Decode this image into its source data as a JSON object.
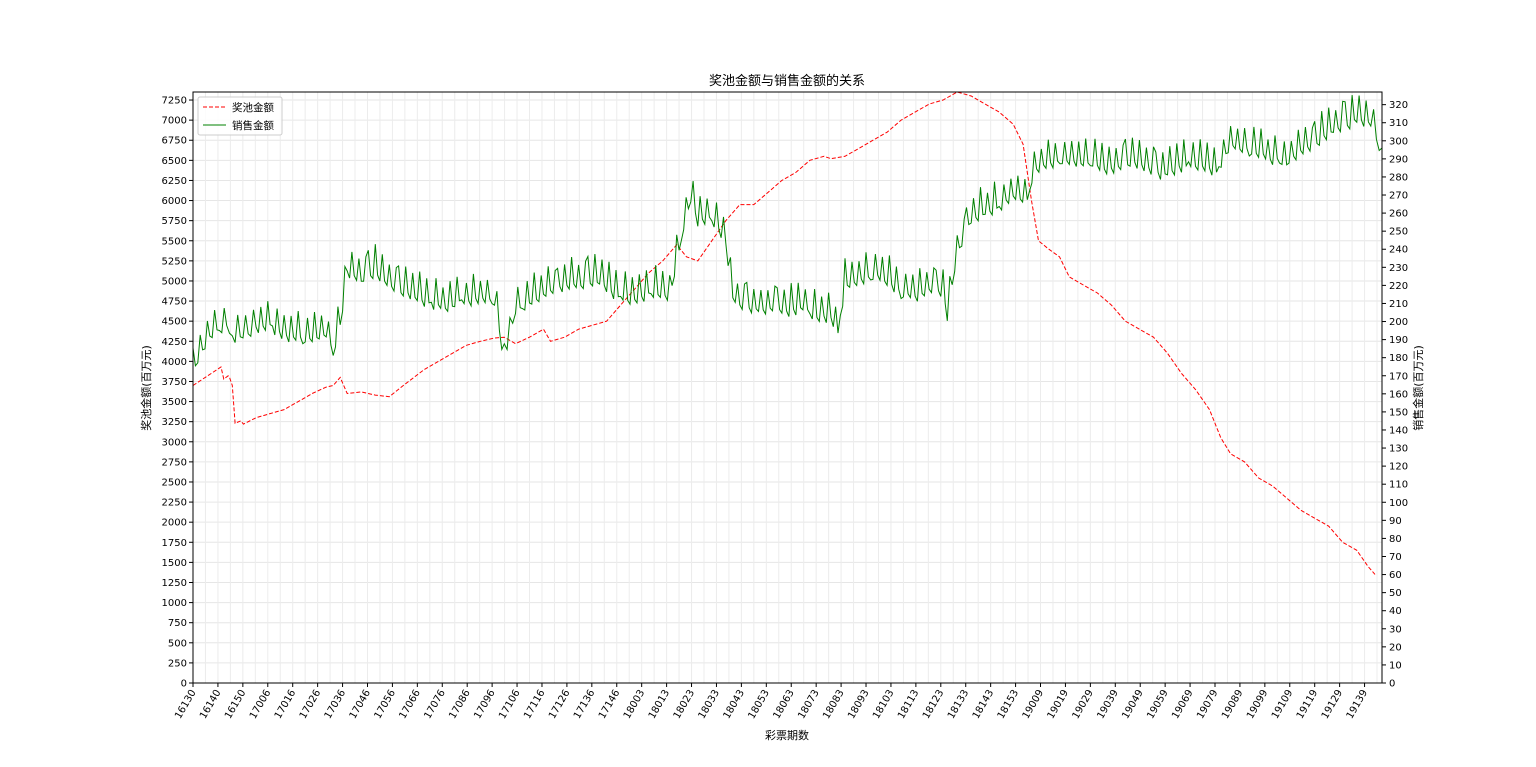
{
  "chart_data": {
    "type": "line",
    "title": "奖池金额与销售金额的关系",
    "xlabel": "彩票期数",
    "ylabel_left": "奖池金额(百万元)",
    "ylabel_right": "销售金额(百万元)",
    "grid": true,
    "legend_position": "upper-left",
    "x_ticks": [
      "16130",
      "16140",
      "16150",
      "17006",
      "17016",
      "17026",
      "17036",
      "17046",
      "17056",
      "17066",
      "17076",
      "17086",
      "17096",
      "17106",
      "17116",
      "17126",
      "17136",
      "17146",
      "18003",
      "18013",
      "18023",
      "18033",
      "18043",
      "18053",
      "18063",
      "18073",
      "18083",
      "18093",
      "18103",
      "18113",
      "18123",
      "18133",
      "18143",
      "18153",
      "19009",
      "19019",
      "19029",
      "19039",
      "19049",
      "19059",
      "19069",
      "19079",
      "19089",
      "19099",
      "19109",
      "19119",
      "19129",
      "19139"
    ],
    "x_count": 478,
    "y_left": {
      "lim": [
        0,
        7350
      ],
      "ticks": [
        0,
        250,
        500,
        750,
        1000,
        1250,
        1500,
        1750,
        2000,
        2250,
        2500,
        2750,
        3000,
        3250,
        3500,
        3750,
        4000,
        4250,
        4500,
        4750,
        5000,
        5250,
        5500,
        5750,
        6000,
        6250,
        6500,
        6750,
        7000,
        7250
      ]
    },
    "y_right": {
      "lim": [
        0,
        327
      ],
      "ticks": [
        0,
        10,
        20,
        30,
        40,
        50,
        60,
        70,
        80,
        90,
        100,
        110,
        120,
        130,
        140,
        150,
        160,
        170,
        180,
        190,
        200,
        210,
        220,
        230,
        240,
        250,
        260,
        270,
        280,
        290,
        300,
        310,
        320
      ]
    },
    "series": [
      {
        "name": "奖池金额",
        "color": "#ff0000",
        "style": "dashed",
        "axis": "left",
        "points": [
          [
            0,
            3700
          ],
          [
            20,
            3930
          ],
          [
            22,
            3780
          ],
          [
            25,
            3820
          ],
          [
            26,
            3800
          ],
          [
            28,
            3700
          ],
          [
            30,
            3230
          ],
          [
            34,
            3260
          ],
          [
            36,
            3220
          ],
          [
            45,
            3300
          ],
          [
            55,
            3350
          ],
          [
            65,
            3400
          ],
          [
            75,
            3500
          ],
          [
            85,
            3600
          ],
          [
            95,
            3680
          ],
          [
            100,
            3700
          ],
          [
            105,
            3800
          ],
          [
            110,
            3600
          ],
          [
            120,
            3620
          ],
          [
            130,
            3580
          ],
          [
            140,
            3560
          ],
          [
            150,
            3700
          ],
          [
            165,
            3900
          ],
          [
            175,
            4000
          ],
          [
            185,
            4100
          ],
          [
            195,
            4200
          ],
          [
            205,
            4250
          ],
          [
            215,
            4290
          ],
          [
            222,
            4300
          ],
          [
            230,
            4220
          ],
          [
            240,
            4300
          ],
          [
            250,
            4400
          ],
          [
            255,
            4250
          ],
          [
            265,
            4300
          ],
          [
            275,
            4400
          ],
          [
            285,
            4450
          ],
          [
            295,
            4500
          ],
          [
            305,
            4700
          ],
          [
            315,
            4900
          ],
          [
            325,
            5100
          ],
          [
            335,
            5250
          ],
          [
            345,
            5450
          ],
          [
            352,
            5300
          ],
          [
            360,
            5250
          ],
          [
            370,
            5500
          ],
          [
            380,
            5750
          ],
          [
            390,
            5950
          ],
          [
            400,
            5950
          ],
          [
            410,
            6100
          ],
          [
            420,
            6250
          ],
          [
            430,
            6350
          ],
          [
            440,
            6500
          ],
          [
            450,
            6550
          ],
          [
            455,
            6520
          ],
          [
            465,
            6550
          ],
          [
            475,
            6650
          ],
          [
            485,
            6750
          ],
          [
            495,
            6850
          ],
          [
            505,
            7000
          ],
          [
            515,
            7100
          ],
          [
            525,
            7200
          ],
          [
            535,
            7250
          ],
          [
            545,
            7350
          ],
          [
            555,
            7300
          ],
          [
            565,
            7200
          ],
          [
            575,
            7100
          ],
          [
            585,
            6950
          ],
          [
            592,
            6700
          ],
          [
            598,
            6000
          ],
          [
            603,
            5500
          ],
          [
            610,
            5400
          ],
          [
            618,
            5300
          ],
          [
            625,
            5050
          ],
          [
            635,
            4950
          ],
          [
            645,
            4850
          ],
          [
            655,
            4700
          ],
          [
            665,
            4500
          ],
          [
            675,
            4400
          ],
          [
            685,
            4300
          ],
          [
            695,
            4100
          ],
          [
            705,
            3850
          ],
          [
            715,
            3650
          ],
          [
            725,
            3400
          ],
          [
            733,
            3050
          ],
          [
            740,
            2850
          ],
          [
            750,
            2750
          ],
          [
            760,
            2550
          ],
          [
            770,
            2450
          ],
          [
            780,
            2300
          ],
          [
            790,
            2150
          ],
          [
            800,
            2050
          ],
          [
            810,
            1950
          ],
          [
            820,
            1750
          ],
          [
            830,
            1650
          ],
          [
            838,
            1450
          ],
          [
            843,
            1350
          ]
        ]
      },
      {
        "name": "销售金额",
        "color": "#008000",
        "style": "solid",
        "axis": "right",
        "points": [
          [
            0,
            175
          ],
          [
            12,
            195
          ],
          [
            24,
            200
          ],
          [
            30,
            192
          ],
          [
            45,
            199
          ],
          [
            55,
            200
          ],
          [
            65,
            194
          ],
          [
            75,
            193
          ],
          [
            85,
            193
          ],
          [
            95,
            195
          ],
          [
            100,
            186
          ],
          [
            105,
            200
          ],
          [
            110,
            230
          ],
          [
            120,
            225
          ],
          [
            130,
            230
          ],
          [
            140,
            222
          ],
          [
            150,
            218
          ],
          [
            160,
            215
          ],
          [
            170,
            212
          ],
          [
            180,
            210
          ],
          [
            190,
            213
          ],
          [
            200,
            214
          ],
          [
            210,
            215
          ],
          [
            215,
            213
          ],
          [
            222,
            180
          ],
          [
            230,
            208
          ],
          [
            240,
            213
          ],
          [
            250,
            217
          ],
          [
            260,
            220
          ],
          [
            270,
            223
          ],
          [
            280,
            223
          ],
          [
            290,
            225
          ],
          [
            300,
            218
          ],
          [
            310,
            214
          ],
          [
            320,
            216
          ],
          [
            330,
            218
          ],
          [
            340,
            215
          ],
          [
            350,
            255
          ],
          [
            355,
            270
          ],
          [
            360,
            258
          ],
          [
            370,
            260
          ],
          [
            380,
            245
          ],
          [
            385,
            215
          ],
          [
            395,
            209
          ],
          [
            405,
            209
          ],
          [
            415,
            210
          ],
          [
            425,
            208
          ],
          [
            435,
            210
          ],
          [
            445,
            204
          ],
          [
            455,
            205
          ],
          [
            460,
            196
          ],
          [
            465,
            222
          ],
          [
            475,
            225
          ],
          [
            485,
            228
          ],
          [
            495,
            225
          ],
          [
            505,
            218
          ],
          [
            515,
            216
          ],
          [
            525,
            220
          ],
          [
            535,
            218
          ],
          [
            538,
            205
          ],
          [
            545,
            240
          ],
          [
            555,
            258
          ],
          [
            565,
            263
          ],
          [
            575,
            266
          ],
          [
            585,
            272
          ],
          [
            595,
            270
          ],
          [
            600,
            285
          ],
          [
            610,
            290
          ],
          [
            620,
            291
          ],
          [
            630,
            290
          ],
          [
            640,
            291
          ],
          [
            650,
            286
          ],
          [
            660,
            288
          ],
          [
            670,
            290
          ],
          [
            680,
            287
          ],
          [
            690,
            283
          ],
          [
            700,
            286
          ],
          [
            710,
            290
          ],
          [
            720,
            288
          ],
          [
            730,
            285
          ],
          [
            740,
            300
          ],
          [
            750,
            298
          ],
          [
            760,
            295
          ],
          [
            770,
            292
          ],
          [
            780,
            290
          ],
          [
            790,
            296
          ],
          [
            800,
            300
          ],
          [
            810,
            307
          ],
          [
            820,
            310
          ],
          [
            830,
            314
          ],
          [
            840,
            312
          ],
          [
            848,
            296
          ]
        ]
      }
    ]
  }
}
